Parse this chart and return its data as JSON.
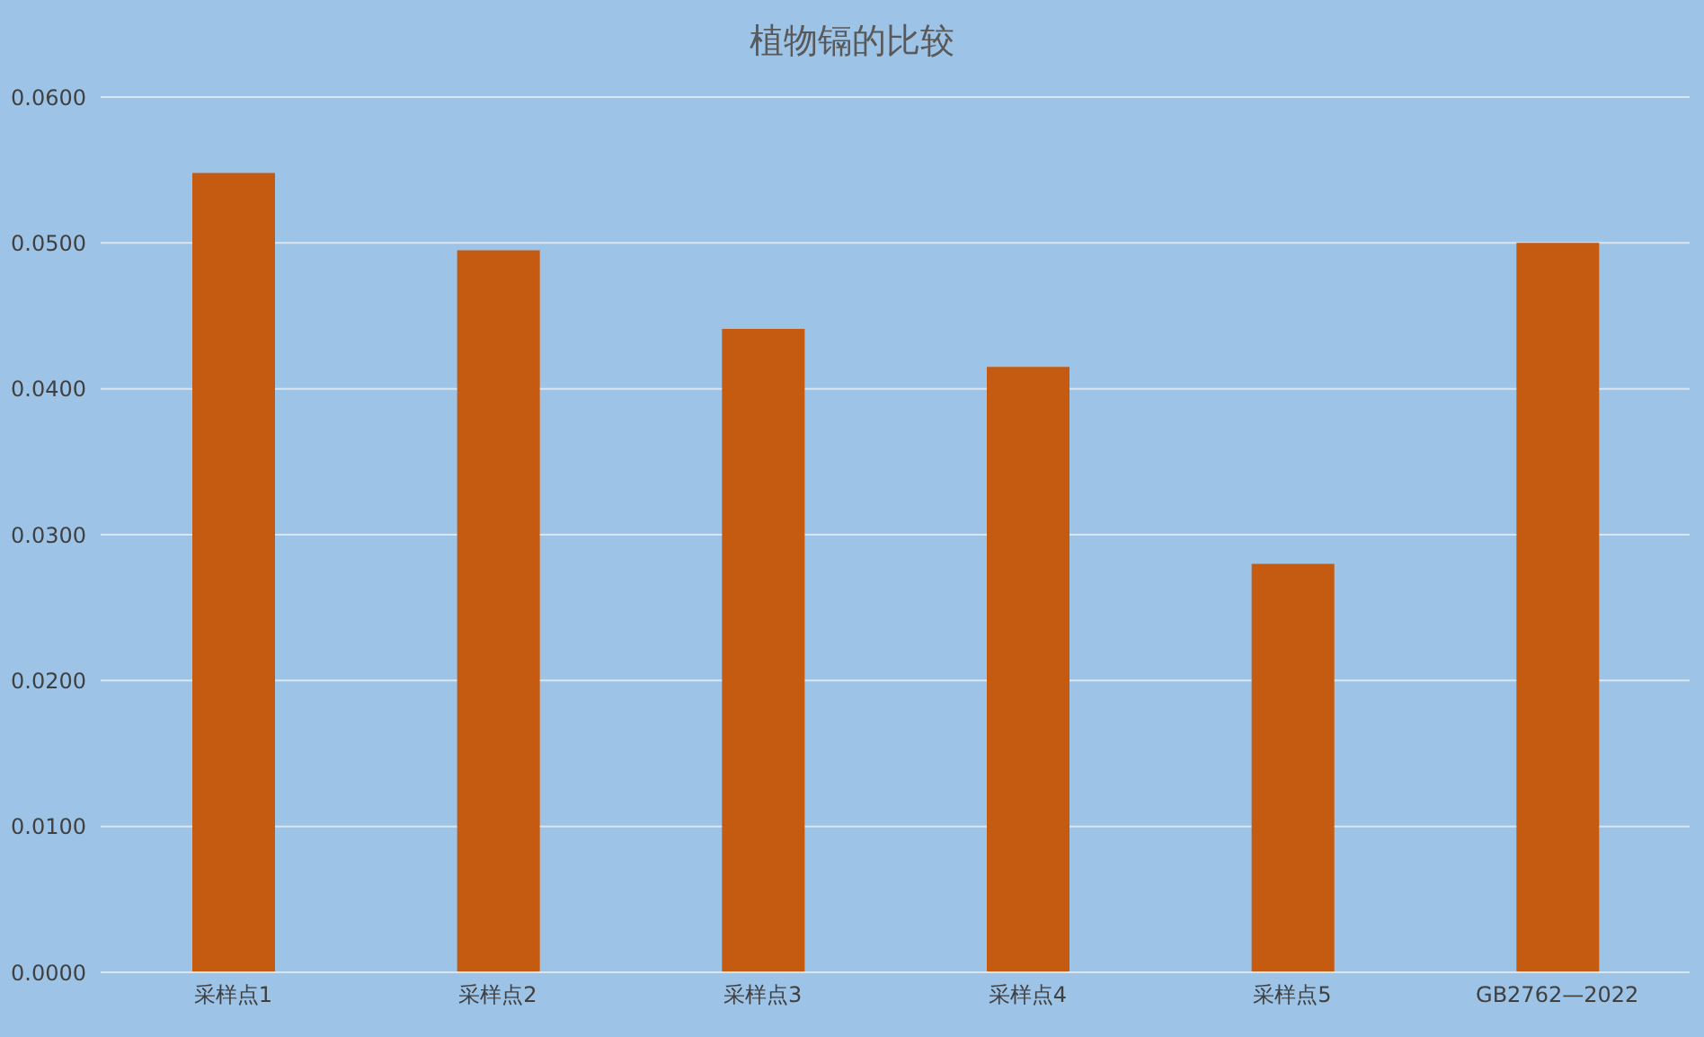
{
  "chart_data": {
    "type": "bar",
    "title": "植物镉的比较",
    "categories": [
      "采样点1",
      "采样点2",
      "采样点3",
      "采样点4",
      "采样点5",
      "GB2762—2022"
    ],
    "values": [
      0.0548,
      0.0495,
      0.0441,
      0.0415,
      0.028,
      0.05
    ],
    "color": "#c55a11",
    "ylim": [
      0,
      0.06
    ],
    "yticks": [
      {
        "value": 0,
        "label": "0.0000"
      },
      {
        "value": 0.01,
        "label": "0.0100"
      },
      {
        "value": 0.02,
        "label": "0.0200"
      },
      {
        "value": 0.03,
        "label": "0.0300"
      },
      {
        "value": 0.04,
        "label": "0.0400"
      },
      {
        "value": 0.05,
        "label": "0.0500"
      },
      {
        "value": 0.06,
        "label": "0.0600"
      }
    ],
    "grid": "y",
    "legend": false
  }
}
